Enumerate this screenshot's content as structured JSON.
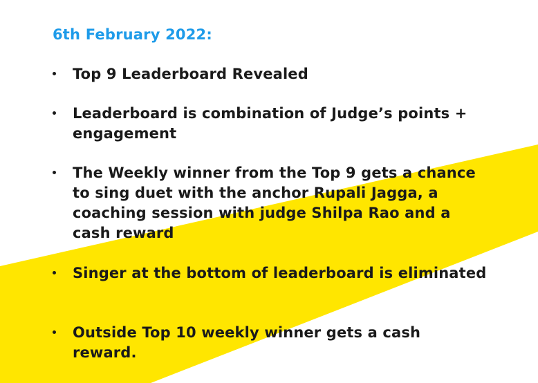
{
  "slide": {
    "date_heading": "6th February 2022:",
    "bullets": [
      "Top 9 Leaderboard Revealed",
      "Leaderboard is combination of Judge’s points + engagement",
      "The Weekly winner from the Top 9 gets a chance to sing duet with the anchor Rupali Jagga, a coaching session with judge Shilpa Rao and a cash reward",
      "Singer at the bottom of leaderboard is eliminated",
      "Outside Top 10 weekly winner gets a cash reward."
    ]
  },
  "colors": {
    "heading": "#1e9be9",
    "text": "#1a1a1a",
    "accent_stripe": "#ffe600",
    "background": "#ffffff"
  }
}
